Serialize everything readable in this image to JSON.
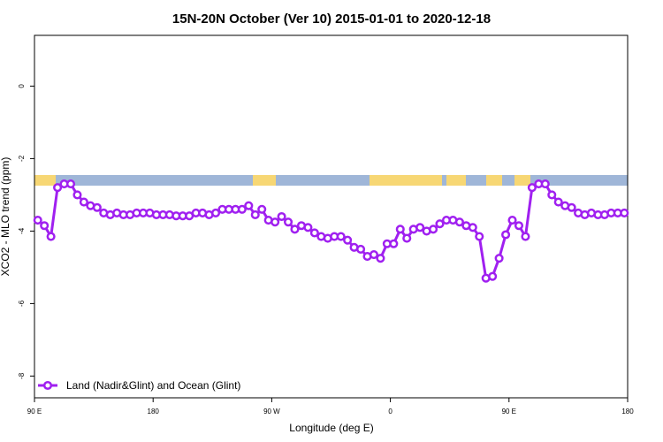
{
  "chart_data": {
    "type": "line",
    "title": "15N-20N October (Ver 10)   2015-01-01 to 2020-12-18",
    "x_label": "Longitude (deg E)",
    "y_label": "XCO2 - MLO trend (ppm)",
    "xlim": [
      90,
      540
    ],
    "xticks": [
      {
        "value": 90,
        "label": "90 E"
      },
      {
        "value": 180,
        "label": "180"
      },
      {
        "value": 270,
        "label": "90 W"
      },
      {
        "value": 360,
        "label": "0"
      },
      {
        "value": 450,
        "label": "90 E"
      },
      {
        "value": 540,
        "label": "180"
      }
    ],
    "ylim": [
      -8.6,
      1.4
    ],
    "yticks": [
      0,
      -2,
      -4,
      -6,
      -8
    ],
    "legend": "bottom-left",
    "x": [
      92.5,
      97.5,
      102.5,
      107.5,
      112.5,
      117.5,
      122.5,
      127.5,
      132.5,
      137.5,
      142.5,
      147.5,
      152.5,
      157.5,
      162.5,
      167.5,
      172.5,
      177.5,
      182.5,
      187.5,
      192.5,
      197.5,
      202.5,
      207.5,
      212.5,
      217.5,
      222.5,
      227.5,
      232.5,
      237.5,
      242.5,
      247.5,
      252.5,
      257.5,
      262.5,
      267.5,
      272.5,
      277.5,
      282.5,
      287.5,
      292.5,
      297.5,
      302.5,
      307.5,
      312.5,
      317.5,
      322.5,
      327.5,
      332.5,
      337.5,
      342.5,
      347.5,
      352.5,
      357.5,
      362.5,
      367.5,
      372.5,
      377.5,
      382.5,
      387.5,
      392.5,
      397.5,
      402.5,
      407.5,
      412.5,
      417.5,
      422.5,
      427.5,
      432.5,
      437.5,
      442.5,
      447.5,
      452.5,
      457.5,
      462.5,
      467.5,
      472.5,
      477.5,
      482.5,
      487.5,
      492.5,
      497.5,
      502.5,
      507.5,
      512.5,
      517.5,
      522.5,
      527.5,
      532.5,
      537.5
    ],
    "series": [
      {
        "name": "Land (Nadir&Glint) and Ocean (Glint)",
        "color": "#a020f0",
        "values": [
          -3.7,
          -3.85,
          -4.15,
          -2.8,
          -2.7,
          -2.7,
          -3.0,
          -3.2,
          -3.3,
          -3.35,
          -3.5,
          -3.55,
          -3.5,
          -3.55,
          -3.55,
          -3.5,
          -3.5,
          -3.5,
          -3.55,
          -3.55,
          -3.55,
          -3.58,
          -3.58,
          -3.58,
          -3.5,
          -3.5,
          -3.55,
          -3.5,
          -3.4,
          -3.4,
          -3.4,
          -3.4,
          -3.3,
          -3.55,
          -3.4,
          -3.7,
          -3.75,
          -3.6,
          -3.75,
          -3.95,
          -3.85,
          -3.9,
          -4.05,
          -4.15,
          -4.2,
          -4.15,
          -4.15,
          -4.25,
          -4.45,
          -4.5,
          -4.7,
          -4.65,
          -4.75,
          -4.35,
          -4.35,
          -3.95,
          -4.2,
          -3.95,
          -3.9,
          -4.0,
          -3.95,
          -3.8,
          -3.7,
          -3.7,
          -3.75,
          -3.85,
          -3.9,
          -4.15,
          -5.3,
          -5.25,
          -4.75,
          -4.1,
          -3.7,
          -3.85,
          -4.15,
          -2.8,
          -2.7,
          -2.7,
          -3.0,
          -3.2,
          -3.3,
          -3.35,
          -3.5,
          -3.55,
          -3.5,
          -3.55,
          -3.55,
          -3.5,
          -3.5,
          -3.5
        ]
      }
    ]
  }
}
